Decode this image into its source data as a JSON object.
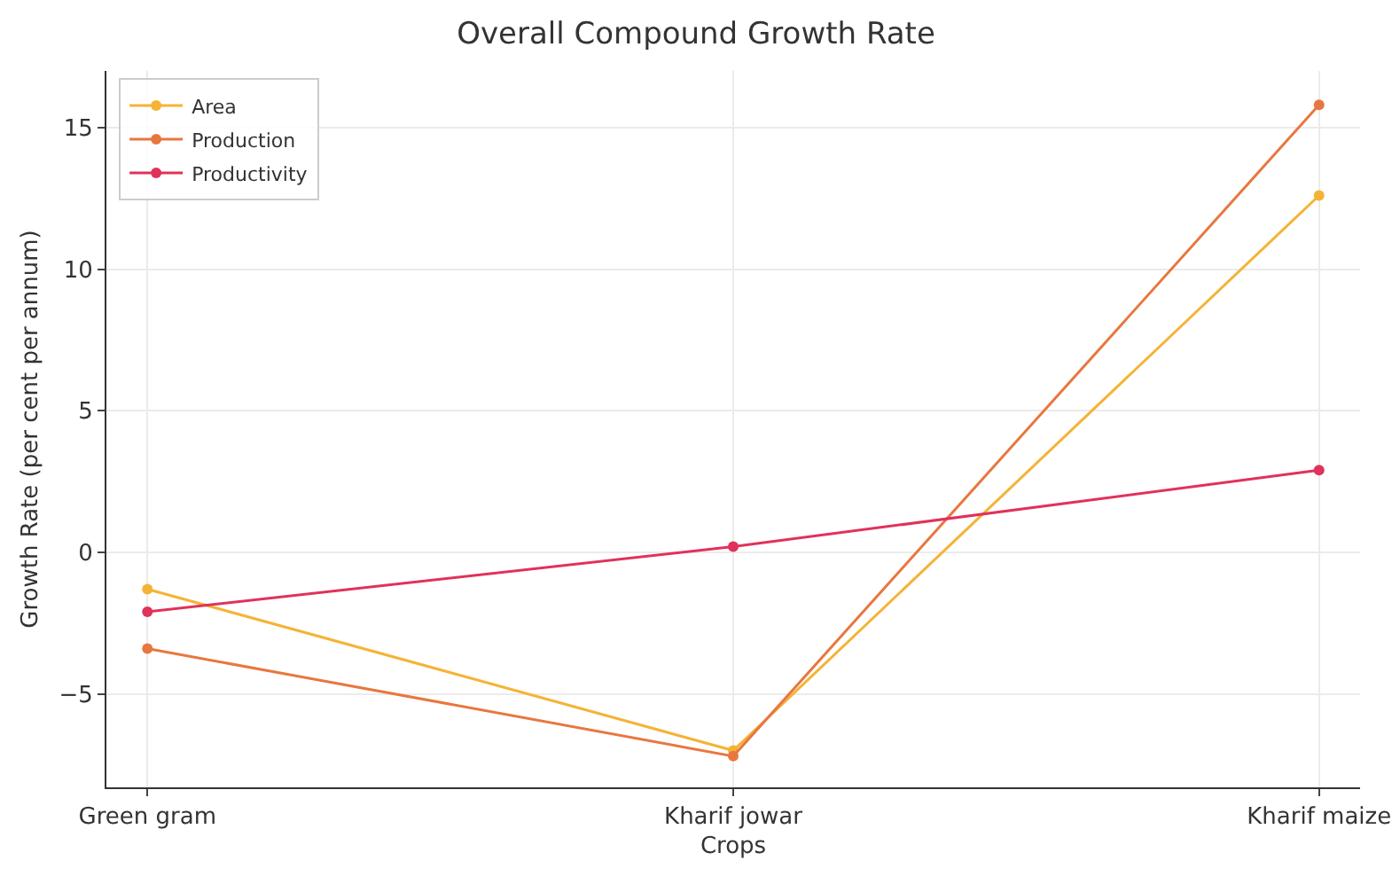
{
  "chart_data": {
    "type": "line",
    "title": "Overall Compound Growth Rate",
    "xlabel": "Crops",
    "ylabel": "Growth Rate (per cent per annum)",
    "categories": [
      "Green gram",
      "Kharif jowar",
      "Kharif maize"
    ],
    "series": [
      {
        "name": "Area",
        "color": "#f5b335",
        "values": [
          -1.3,
          -7.0,
          12.6
        ]
      },
      {
        "name": "Production",
        "color": "#e8773f",
        "values": [
          -3.4,
          -7.2,
          15.8
        ]
      },
      {
        "name": "Productivity",
        "color": "#e0325a",
        "values": [
          -2.1,
          0.2,
          2.9
        ]
      }
    ],
    "ylim": [
      -8.3,
      17
    ],
    "yticks": [
      -5,
      0,
      5,
      10,
      15
    ],
    "grid": true,
    "legend": "top left",
    "marker": "circle",
    "line_style": "solid"
  }
}
